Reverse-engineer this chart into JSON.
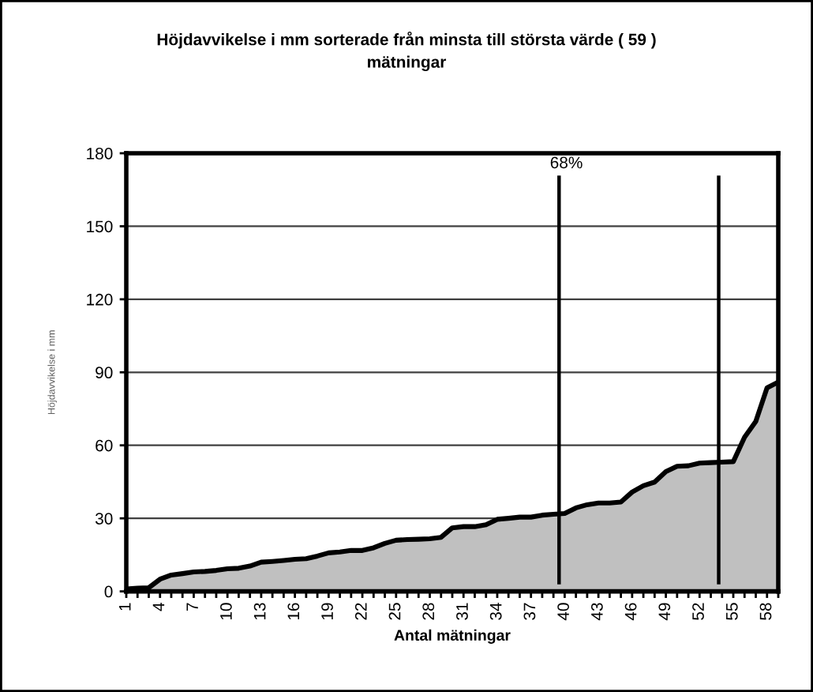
{
  "chart_data": {
    "type": "area",
    "title": "Höjdavvikelse i mm sorterade från minsta till största värde ( 59 )\nmätningar",
    "xlabel": "Antal mätningar",
    "ylabel": "Höjdavvikelse i mm",
    "x": [
      1,
      2,
      3,
      4,
      5,
      6,
      7,
      8,
      9,
      10,
      11,
      12,
      13,
      14,
      15,
      16,
      17,
      18,
      19,
      20,
      21,
      22,
      23,
      24,
      25,
      26,
      27,
      28,
      29,
      30,
      31,
      32,
      33,
      34,
      35,
      36,
      37,
      38,
      39,
      40,
      41,
      42,
      43,
      44,
      45,
      46,
      47,
      48,
      49,
      50,
      51,
      52,
      53,
      54,
      55,
      56,
      57,
      58,
      59
    ],
    "series": [
      {
        "color": "#c0c0c0",
        "values": [
          1,
          1.3,
          1.5,
          5,
          6.7,
          7.3,
          8,
          8.2,
          8.6,
          9.3,
          9.5,
          10.4,
          12,
          12.3,
          12.7,
          13.2,
          13.4,
          14.5,
          15.8,
          16.2,
          16.8,
          16.8,
          17.9,
          19.7,
          21,
          21.3,
          21.4,
          21.6,
          22.2,
          26.1,
          26.6,
          26.6,
          27.4,
          29.6,
          30,
          30.5,
          30.5,
          31.3,
          31.7,
          32,
          34.3,
          35.6,
          36.3,
          36.3,
          36.7,
          40.8,
          43.4,
          44.9,
          49.2,
          51.4,
          51.6,
          52.7,
          52.9,
          53.1,
          53.3,
          63.3,
          69.8,
          83.6,
          86
        ]
      }
    ],
    "xlim": [
      1,
      59
    ],
    "xticks": [
      1,
      {
        "value": 2,
        "label": null
      },
      {
        "value": 3,
        "label": null
      },
      4,
      {
        "value": 5,
        "label": null
      },
      {
        "value": 6,
        "label": null
      },
      7,
      {
        "value": 8,
        "label": null
      },
      {
        "value": 9,
        "label": null
      },
      10,
      {
        "value": 11,
        "label": null
      },
      {
        "value": 12,
        "label": null
      },
      13,
      {
        "value": 14,
        "label": null
      },
      {
        "value": 15,
        "label": null
      },
      16,
      {
        "value": 17,
        "label": null
      },
      {
        "value": 18,
        "label": null
      },
      19,
      {
        "value": 20,
        "label": null
      },
      {
        "value": 21,
        "label": null
      },
      22,
      {
        "value": 23,
        "label": null
      },
      {
        "value": 24,
        "label": null
      },
      25,
      {
        "value": 26,
        "label": null
      },
      {
        "value": 27,
        "label": null
      },
      28,
      {
        "value": 29,
        "label": null
      },
      {
        "value": 30,
        "label": null
      },
      31,
      {
        "value": 32,
        "label": null
      },
      {
        "value": 33,
        "label": null
      },
      34,
      {
        "value": 35,
        "label": null
      },
      {
        "value": 36,
        "label": null
      },
      37,
      {
        "value": 38,
        "label": null
      },
      {
        "value": 39,
        "label": null
      },
      40,
      {
        "value": 41,
        "label": null
      },
      {
        "value": 42,
        "label": null
      },
      43,
      {
        "value": 44,
        "label": null
      },
      {
        "value": 45,
        "label": null
      },
      46,
      {
        "value": 47,
        "label": null
      },
      {
        "value": 48,
        "label": null
      },
      49,
      {
        "value": 50,
        "label": null
      },
      {
        "value": 51,
        "label": null
      },
      52,
      {
        "value": 53,
        "label": null
      },
      {
        "value": 54,
        "label": null
      },
      55,
      {
        "value": 56,
        "label": null
      },
      {
        "value": 57,
        "label": null
      },
      58,
      {
        "value": 59,
        "label": null
      }
    ],
    "ylim": [
      0,
      180
    ],
    "yticks": [
      0,
      30,
      60,
      90,
      120,
      150,
      180
    ],
    "ref_lines": [
      {
        "axis": "x",
        "value": 39.5,
        "color": "#000000"
      },
      {
        "axis": "x",
        "value": 53.7,
        "color": "#000000"
      }
    ],
    "annotations": [
      "68%"
    ],
    "grid": "y"
  }
}
